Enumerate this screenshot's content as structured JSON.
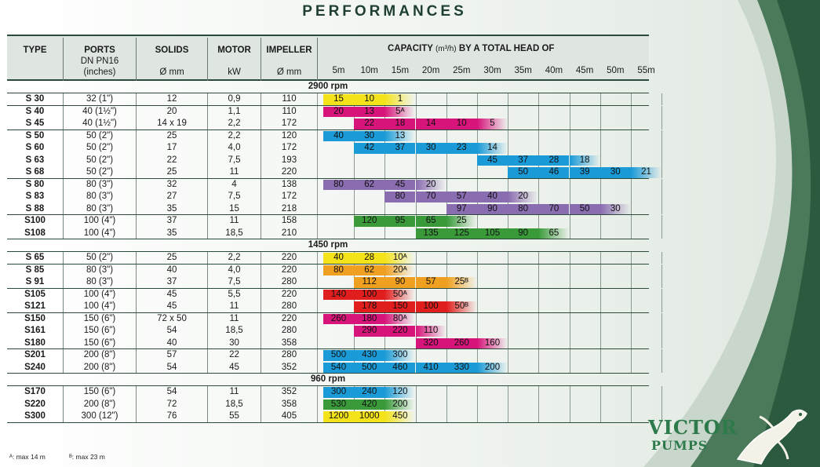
{
  "title": "PERFORMANCES",
  "headers": {
    "type": "TYPE",
    "ports": [
      "PORTS",
      "DN PN16",
      "(inches)"
    ],
    "solids": [
      "SOLIDS",
      "Ø mm"
    ],
    "motor": [
      "MOTOR",
      "kW"
    ],
    "impeller": [
      "IMPELLER",
      "Ø mm"
    ],
    "capacity": "CAPACITY",
    "capacity_unit": "(m³/h)",
    "capacity_tail": "BY A TOTAL HEAD OF",
    "heads": [
      "5m",
      "10m",
      "15m",
      "20m",
      "25m",
      "30m",
      "35m",
      "40m",
      "45m",
      "50m",
      "55m"
    ]
  },
  "groups": [
    {
      "rpm": "2900 rpm",
      "sections": [
        [
          {
            "type": "S 30",
            "ports": "32 (1\")",
            "solids": "12",
            "motor": "0,9",
            "impeller": "110",
            "start": 0,
            "values": [
              "15",
              "10",
              "1"
            ],
            "color": "#f4e21a"
          }
        ],
        [
          {
            "type": "S 40",
            "ports": "40 (1½\")",
            "solids": "20",
            "motor": "1,1",
            "impeller": "110",
            "start": 0,
            "values": [
              "20",
              "13",
              "5ᴬ"
            ],
            "color": "#d7147a"
          },
          {
            "type": "S 45",
            "ports": "40 (1½\")",
            "solids": "14 x 19",
            "motor": "2,2",
            "impeller": "172",
            "start": 1,
            "values": [
              "22",
              "18",
              "14",
              "10",
              "5"
            ],
            "color": "#d7147a"
          }
        ],
        [
          {
            "type": "S 50",
            "ports": "50 (2\")",
            "solids": "25",
            "motor": "2,2",
            "impeller": "120",
            "start": 0,
            "values": [
              "40",
              "30",
              "13"
            ],
            "color": "#1a9ad6"
          },
          {
            "type": "S 60",
            "ports": "50 (2\")",
            "solids": "17",
            "motor": "4,0",
            "impeller": "172",
            "start": 1,
            "values": [
              "42",
              "37",
              "30",
              "23",
              "14"
            ],
            "color": "#1a9ad6"
          },
          {
            "type": "S 63",
            "ports": "50 (2\")",
            "solids": "22",
            "motor": "7,5",
            "impeller": "193",
            "start": 5,
            "values": [
              "45",
              "37",
              "28",
              "18"
            ],
            "color": "#1a9ad6"
          },
          {
            "type": "S 68",
            "ports": "50 (2\")",
            "solids": "25",
            "motor": "11",
            "impeller": "220",
            "start": 6,
            "values": [
              "50",
              "46",
              "39",
              "30",
              "21"
            ],
            "color": "#1a9ad6"
          }
        ],
        [
          {
            "type": "S 80",
            "ports": "80 (3\")",
            "solids": "32",
            "motor": "4",
            "impeller": "138",
            "start": 0,
            "values": [
              "80",
              "62",
              "45",
              "20"
            ],
            "color": "#8a6cb0"
          },
          {
            "type": "S 83",
            "ports": "80 (3\")",
            "solids": "27",
            "motor": "7,5",
            "impeller": "172",
            "start": 2,
            "values": [
              "80",
              "70",
              "57",
              "40",
              "20"
            ],
            "color": "#8a6cb0"
          },
          {
            "type": "S 88",
            "ports": "80 (3\")",
            "solids": "35",
            "motor": "15",
            "impeller": "218",
            "start": 4,
            "values": [
              "97",
              "90",
              "80",
              "70",
              "50",
              "30"
            ],
            "color": "#8a6cb0"
          }
        ],
        [
          {
            "type": "S100",
            "ports": "100 (4\")",
            "solids": "37",
            "motor": "11",
            "impeller": "158",
            "start": 1,
            "values": [
              "120",
              "95",
              "65",
              "25"
            ],
            "color": "#3a9a3a"
          },
          {
            "type": "S108",
            "ports": "100 (4\")",
            "solids": "35",
            "motor": "18,5",
            "impeller": "210",
            "start": 3,
            "values": [
              "135",
              "125",
              "105",
              "90",
              "65"
            ],
            "color": "#3a9a3a"
          }
        ]
      ]
    },
    {
      "rpm": "1450 rpm",
      "sections": [
        [
          {
            "type": "S 65",
            "ports": "50 (2\")",
            "solids": "25",
            "motor": "2,2",
            "impeller": "220",
            "start": 0,
            "values": [
              "40",
              "28",
              "10ᴬ"
            ],
            "color": "#f4e21a"
          }
        ],
        [
          {
            "type": "S 85",
            "ports": "80 (3\")",
            "solids": "40",
            "motor": "4,0",
            "impeller": "220",
            "start": 0,
            "values": [
              "80",
              "62",
              "20ᴬ"
            ],
            "color": "#f0a020"
          },
          {
            "type": "S 91",
            "ports": "80 (3\")",
            "solids": "37",
            "motor": "7,5",
            "impeller": "280",
            "start": 1,
            "values": [
              "112",
              "90",
              "57",
              "25ᴮ"
            ],
            "color": "#f0a020"
          }
        ],
        [
          {
            "type": "S105",
            "ports": "100 (4\")",
            "solids": "45",
            "motor": "5,5",
            "impeller": "220",
            "start": 0,
            "values": [
              "140",
              "100",
              "50ᴬ"
            ],
            "color": "#e01e1e"
          },
          {
            "type": "S121",
            "ports": "100 (4\")",
            "solids": "45",
            "motor": "11",
            "impeller": "280",
            "start": 1,
            "values": [
              "178",
              "150",
              "100",
              "50ᴮ"
            ],
            "color": "#e01e1e"
          }
        ],
        [
          {
            "type": "S150",
            "ports": "150 (6\")",
            "solids": "72 x 50",
            "motor": "11",
            "impeller": "220",
            "start": 0,
            "values": [
              "260",
              "180",
              "80ᴬ"
            ],
            "color": "#d7147a"
          },
          {
            "type": "S161",
            "ports": "150 (6\")",
            "solids": "54",
            "motor": "18,5",
            "impeller": "280",
            "start": 1,
            "values": [
              "290",
              "220",
              "110"
            ],
            "color": "#d7147a"
          },
          {
            "type": "S180",
            "ports": "150 (6\")",
            "solids": "40",
            "motor": "30",
            "impeller": "358",
            "start": 3,
            "values": [
              "320",
              "260",
              "160"
            ],
            "color": "#d7147a"
          }
        ],
        [
          {
            "type": "S201",
            "ports": "200 (8\")",
            "solids": "57",
            "motor": "22",
            "impeller": "280",
            "start": 0,
            "values": [
              "500",
              "430",
              "300"
            ],
            "color": "#1a9ad6"
          },
          {
            "type": "S240",
            "ports": "200 (8\")",
            "solids": "54",
            "motor": "45",
            "impeller": "352",
            "start": 0,
            "values": [
              "540",
              "500",
              "460",
              "410",
              "330",
              "200"
            ],
            "color": "#1a9ad6"
          }
        ]
      ]
    },
    {
      "rpm": "960 rpm",
      "sections": [
        [
          {
            "type": "S170",
            "ports": "150 (6\")",
            "solids": "54",
            "motor": "11",
            "impeller": "352",
            "start": 0,
            "values": [
              "300",
              "240",
              "120"
            ],
            "color": "#1a9ad6"
          },
          {
            "type": "S220",
            "ports": "200 (8\")",
            "solids": "72",
            "motor": "18,5",
            "impeller": "358",
            "start": 0,
            "values": [
              "530",
              "420",
              "200"
            ],
            "color": "#3a9a3a"
          },
          {
            "type": "S300",
            "ports": "300 (12\")",
            "solids": "76",
            "motor": "55",
            "impeller": "405",
            "start": 0,
            "values": [
              "1200",
              "1000",
              "450"
            ],
            "color": "#f4e21a"
          }
        ]
      ]
    }
  ],
  "footnotes": [
    "ᴬ: max 14 m",
    "ᴮ: max 23 m"
  ],
  "logo": {
    "line1": "VICTOR",
    "line2": "PUMPS"
  }
}
